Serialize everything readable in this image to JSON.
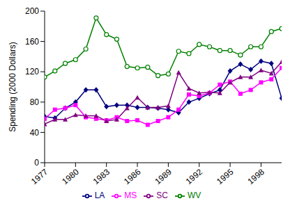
{
  "chart_data": {
    "type": "line",
    "y_label": "Spending (2000 Dollars)",
    "x": [
      1977,
      1978,
      1979,
      1980,
      1981,
      1982,
      1983,
      1984,
      1985,
      1986,
      1987,
      1988,
      1989,
      1990,
      1991,
      1992,
      1993,
      1994,
      1995,
      1996,
      1997,
      1998,
      1999,
      2000
    ],
    "xlim": [
      1977,
      2000
    ],
    "xticks": [
      1977,
      1980,
      1983,
      1986,
      1989,
      1992,
      1995,
      1998
    ],
    "ylim": [
      0,
      200
    ],
    "yticks": [
      0,
      40,
      80,
      120,
      160,
      200
    ],
    "grid": false,
    "legend": "bottom",
    "series": [
      {
        "name": "LA",
        "color": "#000080",
        "marker": "diamond",
        "values": [
          61,
          59,
          72,
          80,
          96,
          96,
          74,
          76,
          76,
          73,
          73,
          72,
          70,
          66,
          80,
          85,
          91,
          96,
          121,
          130,
          123,
          134,
          131,
          85
        ]
      },
      {
        "name": "MS",
        "color": "#ff00ff",
        "marker": "square",
        "values": [
          58,
          70,
          72,
          76,
          60,
          58,
          56,
          60,
          55,
          56,
          50,
          55,
          60,
          70,
          90,
          88,
          92,
          103,
          107,
          91,
          96,
          106,
          110,
          125
        ]
      },
      {
        "name": "SC",
        "color": "#800080",
        "marker": "triangle",
        "values": [
          51,
          57,
          57,
          63,
          62,
          62,
          55,
          57,
          72,
          86,
          73,
          73,
          75,
          119,
          98,
          92,
          93,
          92,
          106,
          113,
          113,
          122,
          118,
          133
        ]
      },
      {
        "name": "WV",
        "color": "#008000",
        "marker": "circle",
        "values": [
          113,
          121,
          131,
          136,
          150,
          191,
          169,
          163,
          127,
          125,
          126,
          115,
          117,
          147,
          144,
          156,
          153,
          148,
          148,
          142,
          153,
          153,
          173,
          177
        ]
      }
    ]
  }
}
